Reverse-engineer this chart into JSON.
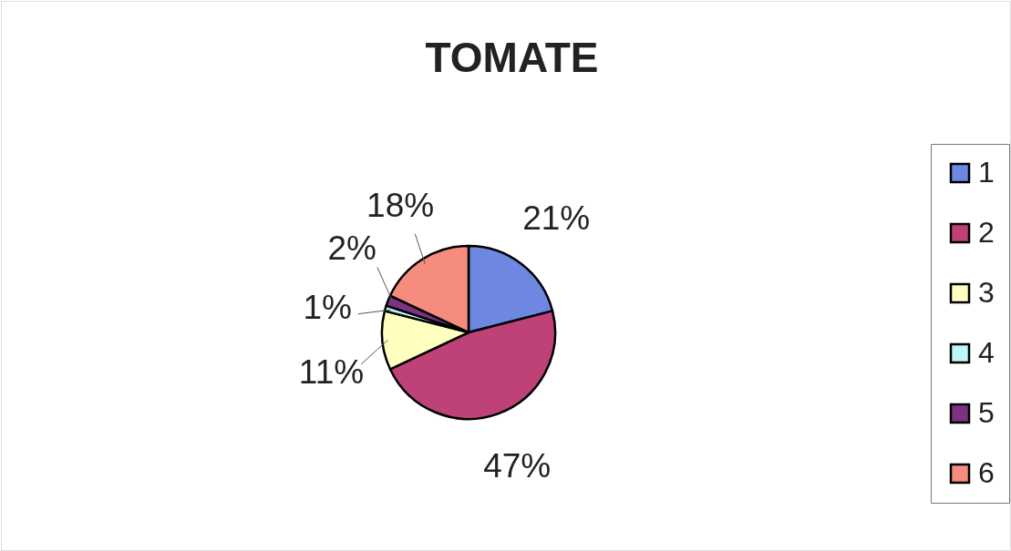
{
  "chart_data": {
    "type": "pie",
    "title": "TOMATE",
    "categories": [
      "1",
      "2",
      "3",
      "4",
      "5",
      "6"
    ],
    "values": [
      21,
      47,
      11,
      1,
      2,
      18
    ],
    "colors": [
      "#6e87e1",
      "#be4178",
      "#ffffc0",
      "#c0f5f5",
      "#7a3282",
      "#f58c7d"
    ],
    "value_labels": [
      "21%",
      "47%",
      "11%",
      "1%",
      "2%",
      "18%"
    ],
    "legend": "right"
  }
}
